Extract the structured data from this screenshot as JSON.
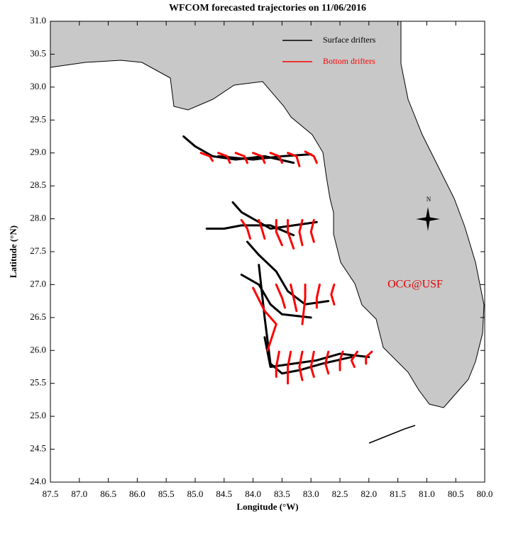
{
  "chart_data": {
    "type": "line",
    "title": "WFCOM forecasted trajectories on 11/06/2016",
    "xlabel": "Longitude (°W)",
    "ylabel": "Latitude (°N)",
    "annotation": "OCG@USF",
    "compass_label": "N",
    "xlim": [
      87.5,
      80.0
    ],
    "ylim": [
      24.0,
      31.0
    ],
    "xticks": [
      87.5,
      {
        "value": 87,
        "label": "87.0"
      },
      86.5,
      {
        "value": 86,
        "label": "86.0"
      },
      85.5,
      {
        "value": 85,
        "label": "85.0"
      },
      84.5,
      {
        "value": 84,
        "label": "84.0"
      },
      83.5,
      {
        "value": 83,
        "label": "83.0"
      },
      82.5,
      {
        "value": 82,
        "label": "82.0"
      },
      81.5,
      {
        "value": 81,
        "label": "81.0"
      },
      80.5,
      {
        "value": 80,
        "label": "80.0"
      }
    ],
    "yticks": [
      {
        "value": 24,
        "label": "24.0"
      },
      24.5,
      {
        "value": 25,
        "label": "25.0"
      },
      25.5,
      {
        "value": 26,
        "label": "26.0"
      },
      26.5,
      {
        "value": 27,
        "label": "27.0"
      },
      27.5,
      {
        "value": 28,
        "label": "28.0"
      },
      28.5,
      {
        "value": 29,
        "label": "29.0"
      },
      29.5,
      {
        "value": 30,
        "label": "30.0"
      },
      30.5,
      {
        "value": 31,
        "label": "31.0"
      }
    ],
    "legend": "upper right",
    "series": [
      {
        "name": "Surface drifters",
        "color": "#000000",
        "tracks": [
          {
            "x": [
              85.2,
              85.0,
              84.7,
              84.3,
              83.8,
              83.3
            ],
            "y": [
              29.25,
              29.1,
              28.95,
              28.9,
              28.95,
              28.85
            ]
          },
          {
            "x": [
              84.6,
              84.0,
              83.5,
              83.0
            ],
            "y": [
              28.95,
              28.9,
              28.95,
              28.98
            ]
          },
          {
            "x": [
              84.35,
              84.2,
              84.0,
              83.7,
              83.3,
              82.9
            ],
            "y": [
              28.25,
              28.1,
              28.0,
              27.85,
              27.9,
              27.95
            ]
          },
          {
            "x": [
              84.8,
              84.5,
              84.2,
              83.7,
              83.3
            ],
            "y": [
              27.85,
              27.85,
              27.9,
              27.9,
              27.75
            ]
          },
          {
            "x": [
              84.1,
              83.9,
              83.6,
              83.4,
              83.1,
              82.7
            ],
            "y": [
              27.65,
              27.45,
              27.2,
              26.9,
              26.7,
              26.75
            ]
          },
          {
            "x": [
              84.2,
              83.9,
              83.7,
              83.5,
              83.0
            ],
            "y": [
              27.15,
              27.0,
              26.7,
              26.55,
              26.5
            ]
          },
          {
            "x": [
              83.9,
              83.8,
              83.7,
              83.5,
              83.2,
              82.8,
              82.3
            ],
            "y": [
              27.3,
              26.5,
              25.8,
              25.65,
              25.7,
              25.8,
              25.9
            ]
          },
          {
            "x": [
              83.8,
              83.7,
              83.3,
              82.9,
              82.5,
              82.0
            ],
            "y": [
              26.2,
              25.75,
              25.8,
              25.85,
              25.95,
              25.9
            ]
          }
        ]
      },
      {
        "name": "Bottom drifters",
        "color": "#ff0000",
        "tracks": [
          {
            "x": [
              84.9,
              84.75,
              84.7
            ],
            "y": [
              29.0,
              28.95,
              28.88
            ]
          },
          {
            "x": [
              84.6,
              84.45,
              84.4
            ],
            "y": [
              29.0,
              28.95,
              28.85
            ]
          },
          {
            "x": [
              84.3,
              84.15,
              84.1
            ],
            "y": [
              29.0,
              28.95,
              28.85
            ]
          },
          {
            "x": [
              84.0,
              83.85,
              83.8
            ],
            "y": [
              29.0,
              28.95,
              28.85
            ]
          },
          {
            "x": [
              83.7,
              83.55,
              83.5
            ],
            "y": [
              29.0,
              28.95,
              28.85
            ]
          },
          {
            "x": [
              83.4,
              83.25,
              83.2
            ],
            "y": [
              29.0,
              28.95,
              28.8
            ]
          },
          {
            "x": [
              83.1,
              82.95,
              82.9
            ],
            "y": [
              29.02,
              28.95,
              28.85
            ]
          },
          {
            "x": [
              84.2,
              84.1,
              84.05
            ],
            "y": [
              27.98,
              27.85,
              27.7
            ]
          },
          {
            "x": [
              83.9,
              83.85,
              83.8
            ],
            "y": [
              27.98,
              27.85,
              27.7
            ]
          },
          {
            "x": [
              83.6,
              83.6,
              83.5
            ],
            "y": [
              27.98,
              27.8,
              27.6
            ]
          },
          {
            "x": [
              83.4,
              83.4,
              83.3
            ],
            "y": [
              27.98,
              27.8,
              27.55
            ]
          },
          {
            "x": [
              83.15,
              83.2,
              83.15
            ],
            "y": [
              27.98,
              27.8,
              27.6
            ]
          },
          {
            "x": [
              82.95,
              83.0,
              82.95
            ],
            "y": [
              27.98,
              27.8,
              27.65
            ]
          },
          {
            "x": [
              84.0,
              83.8,
              83.6,
              83.75
            ],
            "y": [
              26.95,
              26.6,
              26.4,
              26.0
            ]
          },
          {
            "x": [
              83.6,
              83.5,
              83.45
            ],
            "y": [
              27.0,
              26.8,
              26.65
            ]
          },
          {
            "x": [
              83.35,
              83.3,
              83.25
            ],
            "y": [
              27.0,
              26.8,
              26.6
            ]
          },
          {
            "x": [
              83.1,
              83.1,
              83.15
            ],
            "y": [
              27.0,
              26.8,
              26.4
            ]
          },
          {
            "x": [
              82.85,
              82.9,
              82.9
            ],
            "y": [
              27.0,
              26.8,
              26.65
            ]
          },
          {
            "x": [
              82.6,
              82.65,
              82.6
            ],
            "y": [
              27.0,
              26.85,
              26.7
            ]
          },
          {
            "x": [
              83.55,
              83.6,
              83.6
            ],
            "y": [
              25.98,
              25.75,
              25.6
            ]
          },
          {
            "x": [
              83.35,
              83.4,
              83.4
            ],
            "y": [
              25.98,
              25.75,
              25.5
            ]
          },
          {
            "x": [
              83.15,
              83.2,
              83.15
            ],
            "y": [
              25.98,
              25.75,
              25.55
            ]
          },
          {
            "x": [
              82.95,
              83.0,
              82.95
            ],
            "y": [
              25.98,
              25.75,
              25.6
            ]
          },
          {
            "x": [
              82.7,
              82.75,
              82.7
            ],
            "y": [
              25.98,
              25.8,
              25.65
            ]
          },
          {
            "x": [
              82.45,
              82.5,
              82.5
            ],
            "y": [
              25.98,
              25.85,
              25.7
            ]
          },
          {
            "x": [
              82.2,
              82.3,
              82.25
            ],
            "y": [
              25.98,
              25.85,
              25.75
            ]
          },
          {
            "x": [
              81.95,
              82.05,
              82.05
            ],
            "y": [
              25.98,
              25.9,
              25.8
            ]
          }
        ]
      }
    ]
  }
}
